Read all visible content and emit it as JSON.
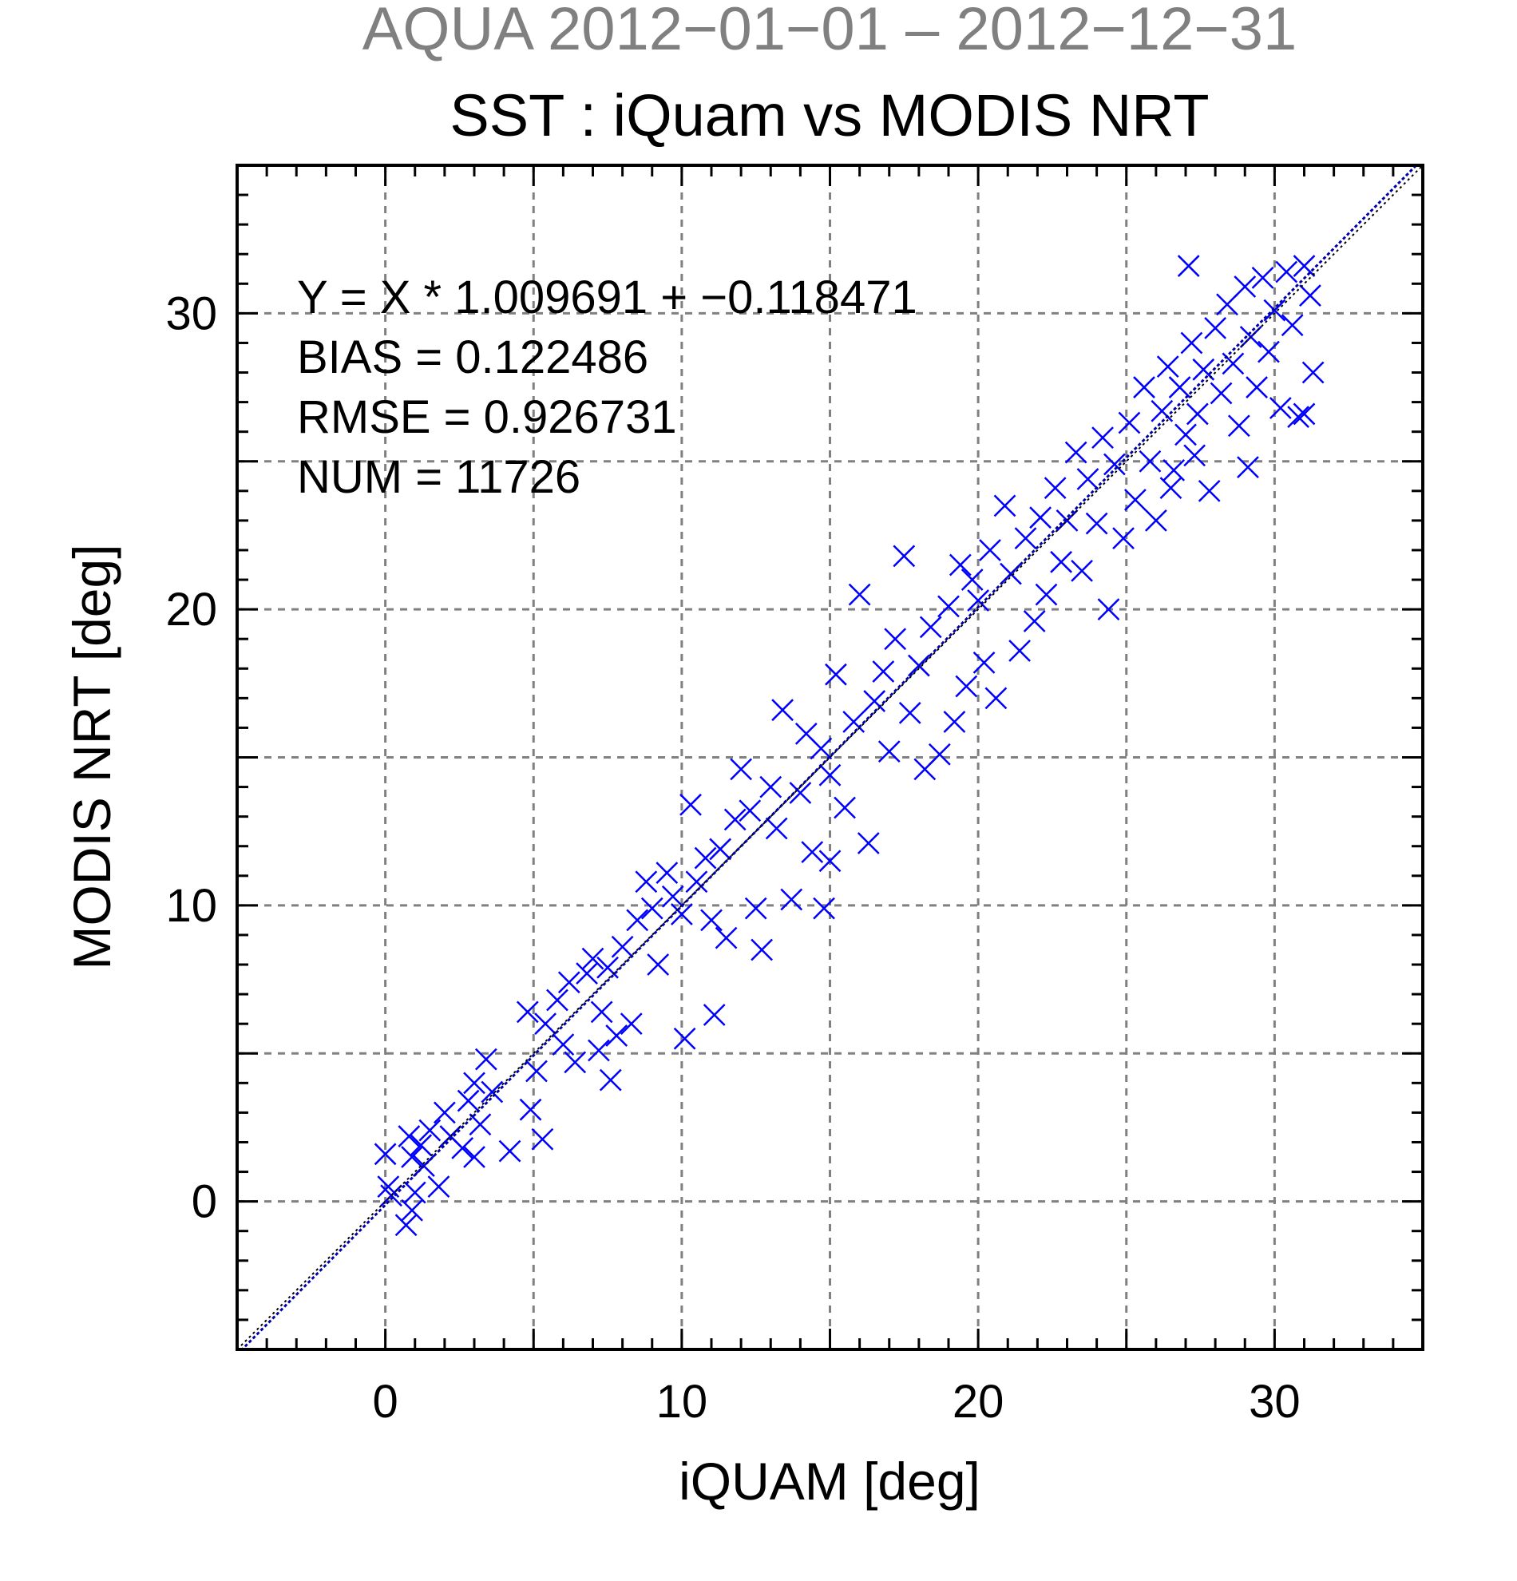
{
  "chart_data": {
    "type": "scatter",
    "title": "AQUA  2012−01−01 – 2012−12−31",
    "subtitle": "SST : iQuam vs MODIS NRT",
    "xlabel": "iQUAM [deg]",
    "ylabel": "MODIS NRT [deg]",
    "xlim": [
      -5,
      35
    ],
    "ylim": [
      -5,
      35
    ],
    "xticks": [
      0,
      10,
      20,
      30
    ],
    "yticks": [
      0,
      10,
      20,
      30
    ],
    "grid": true,
    "colors": {
      "title": "#808080",
      "points": "#0000ff",
      "fit_line": "#0000aa",
      "grid": "#808080"
    },
    "marker": "x",
    "stats": [
      "Y = X * 1.009691 + −0.118471",
      "BIAS = 0.122486",
      "RMSE = 0.926731",
      "NUM = 11726"
    ],
    "fit": {
      "slope": 1.009691,
      "intercept": -0.118471
    },
    "points": [
      [
        0,
        1.6
      ],
      [
        0.1,
        0.5
      ],
      [
        0.2,
        0.2
      ],
      [
        0.8,
        2.2
      ],
      [
        0.9,
        1.5
      ],
      [
        1.0,
        0.3
      ],
      [
        0.7,
        -0.8
      ],
      [
        0.9,
        -0.3
      ],
      [
        1.2,
        1.9
      ],
      [
        1.3,
        1.2
      ],
      [
        1.5,
        2.4
      ],
      [
        1.8,
        0.5
      ],
      [
        2.0,
        3.0
      ],
      [
        2.2,
        2.2
      ],
      [
        2.6,
        1.8
      ],
      [
        2.8,
        3.4
      ],
      [
        3.0,
        1.5
      ],
      [
        3.0,
        4.0
      ],
      [
        3.2,
        2.6
      ],
      [
        3.4,
        4.8
      ],
      [
        3.6,
        3.7
      ],
      [
        4.2,
        1.7
      ],
      [
        4.8,
        6.4
      ],
      [
        4.9,
        3.1
      ],
      [
        5.1,
        4.4
      ],
      [
        5.3,
        2.1
      ],
      [
        5.4,
        6.0
      ],
      [
        5.8,
        6.8
      ],
      [
        6.0,
        5.3
      ],
      [
        6.2,
        7.4
      ],
      [
        6.4,
        4.7
      ],
      [
        6.8,
        7.7
      ],
      [
        7.0,
        8.2
      ],
      [
        7.2,
        5.1
      ],
      [
        7.3,
        6.4
      ],
      [
        7.5,
        7.9
      ],
      [
        7.6,
        4.1
      ],
      [
        7.8,
        5.6
      ],
      [
        8.0,
        8.6
      ],
      [
        8.3,
        6.0
      ],
      [
        8.5,
        9.5
      ],
      [
        8.8,
        10.8
      ],
      [
        9.0,
        9.9
      ],
      [
        9.2,
        8.0
      ],
      [
        9.5,
        11.1
      ],
      [
        9.7,
        10.3
      ],
      [
        10.0,
        9.7
      ],
      [
        10.1,
        5.5
      ],
      [
        10.3,
        13.4
      ],
      [
        10.5,
        10.8
      ],
      [
        10.8,
        11.6
      ],
      [
        11.0,
        9.5
      ],
      [
        11.1,
        6.3
      ],
      [
        11.3,
        11.9
      ],
      [
        11.5,
        8.9
      ],
      [
        11.8,
        12.9
      ],
      [
        12.0,
        14.6
      ],
      [
        12.3,
        13.2
      ],
      [
        12.5,
        9.9
      ],
      [
        12.7,
        8.5
      ],
      [
        13.0,
        14.0
      ],
      [
        13.2,
        12.6
      ],
      [
        13.4,
        16.6
      ],
      [
        13.7,
        10.2
      ],
      [
        14.0,
        13.8
      ],
      [
        14.2,
        15.8
      ],
      [
        14.4,
        11.8
      ],
      [
        14.7,
        15.3
      ],
      [
        15.0,
        14.4
      ],
      [
        14.8,
        9.9
      ],
      [
        15.0,
        11.5
      ],
      [
        15.2,
        17.8
      ],
      [
        15.5,
        13.3
      ],
      [
        15.8,
        16.2
      ],
      [
        16.0,
        20.5
      ],
      [
        16.3,
        12.1
      ],
      [
        16.5,
        16.9
      ],
      [
        16.8,
        17.9
      ],
      [
        17.0,
        15.2
      ],
      [
        17.2,
        19.0
      ],
      [
        17.5,
        21.8
      ],
      [
        17.7,
        16.5
      ],
      [
        18.0,
        18.1
      ],
      [
        18.2,
        14.6
      ],
      [
        18.4,
        19.4
      ],
      [
        18.7,
        15.1
      ],
      [
        19.0,
        20.1
      ],
      [
        19.2,
        16.2
      ],
      [
        19.4,
        21.5
      ],
      [
        19.6,
        17.4
      ],
      [
        19.8,
        21.0
      ],
      [
        20.0,
        20.3
      ],
      [
        20.2,
        18.2
      ],
      [
        20.4,
        22.0
      ],
      [
        20.6,
        17.0
      ],
      [
        20.9,
        23.5
      ],
      [
        21.1,
        21.2
      ],
      [
        21.4,
        18.6
      ],
      [
        21.6,
        22.4
      ],
      [
        21.9,
        19.6
      ],
      [
        22.1,
        23.1
      ],
      [
        22.3,
        20.5
      ],
      [
        22.6,
        24.1
      ],
      [
        22.8,
        21.6
      ],
      [
        23.0,
        23.0
      ],
      [
        23.3,
        25.3
      ],
      [
        23.5,
        21.3
      ],
      [
        23.7,
        24.4
      ],
      [
        24.0,
        22.9
      ],
      [
        24.2,
        25.8
      ],
      [
        24.4,
        20.0
      ],
      [
        24.6,
        24.9
      ],
      [
        24.9,
        22.4
      ],
      [
        25.1,
        26.3
      ],
      [
        25.3,
        23.7
      ],
      [
        25.6,
        27.5
      ],
      [
        25.8,
        25.0
      ],
      [
        26.0,
        23.0
      ],
      [
        26.2,
        26.7
      ],
      [
        26.4,
        28.2
      ],
      [
        26.6,
        24.7
      ],
      [
        26.8,
        27.5
      ],
      [
        27.0,
        25.9
      ],
      [
        27.2,
        29.0
      ],
      [
        27.4,
        26.6
      ],
      [
        27.6,
        28.1
      ],
      [
        27.8,
        24.0
      ],
      [
        28.0,
        29.5
      ],
      [
        28.2,
        27.3
      ],
      [
        28.4,
        30.3
      ],
      [
        28.6,
        28.3
      ],
      [
        28.8,
        26.2
      ],
      [
        29.0,
        30.9
      ],
      [
        29.2,
        29.2
      ],
      [
        29.4,
        27.5
      ],
      [
        29.6,
        31.2
      ],
      [
        29.8,
        28.7
      ],
      [
        30.0,
        30.1
      ],
      [
        30.2,
        26.8
      ],
      [
        30.4,
        31.4
      ],
      [
        30.6,
        29.6
      ],
      [
        30.8,
        26.5
      ],
      [
        31.0,
        31.6
      ],
      [
        31.2,
        30.6
      ],
      [
        31.3,
        28.0
      ],
      [
        27.1,
        31.6
      ],
      [
        26.5,
        24.1
      ],
      [
        27.3,
        25.2
      ],
      [
        29.1,
        24.8
      ],
      [
        31.0,
        26.6
      ]
    ]
  }
}
